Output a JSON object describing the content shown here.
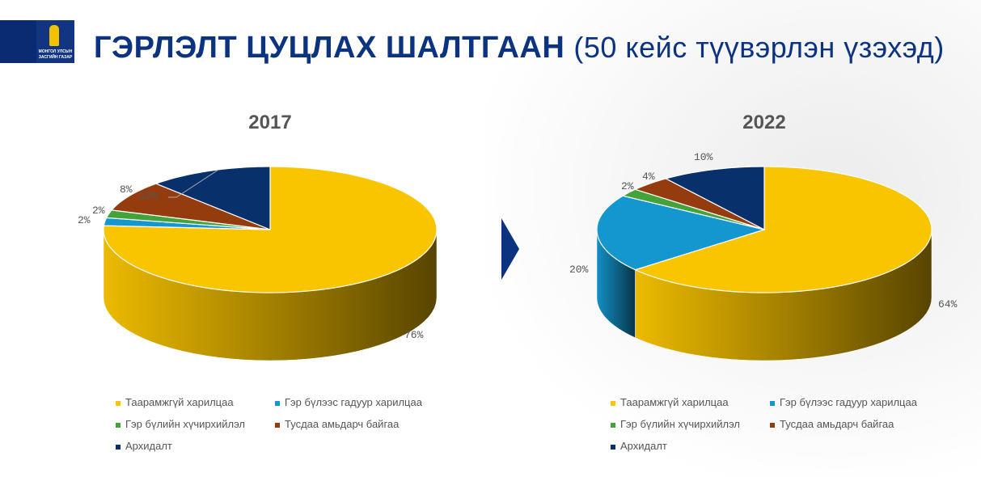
{
  "header": {
    "title": "ГЭРЛЭЛТ ЦУЦЛАХ ШАЛТГААН",
    "subtitle": "(50 кейс түүвэрлэн үзэхэд)",
    "logo_text_1": "МОНГОЛ УЛСЫН",
    "logo_text_2": "ЗАСГИЙН ГАЗАР"
  },
  "chart_data": [
    {
      "type": "pie",
      "title": "2017",
      "categories": [
        "Таарамжгүй харилцаа",
        "Гэр бүлээс гадуур харилцаа",
        "Гэр бүлийн хүчирхийлэл",
        "Тусдаа амьдарч байгаа",
        "Архидалт"
      ],
      "values": [
        76,
        2,
        2,
        8,
        12
      ],
      "labels": [
        "76%",
        "2%",
        "2%",
        "8%",
        "12%"
      ],
      "legend": "bottom"
    },
    {
      "type": "pie",
      "title": "2022",
      "categories": [
        "Таарамжгүй харилцаа",
        "Гэр бүлээс гадуур харилцаа",
        "Гэр бүлийн хүчирхийлэл",
        "Тусдаа амьдарч байгаа",
        "Архидалт"
      ],
      "values": [
        64,
        20,
        2,
        4,
        10
      ],
      "labels": [
        "64%",
        "20%",
        "2%",
        "4%",
        "10%"
      ],
      "legend": "bottom"
    }
  ],
  "colors": [
    "#f9c400",
    "#1497cf",
    "#43a33a",
    "#953c0e",
    "#08306b"
  ]
}
